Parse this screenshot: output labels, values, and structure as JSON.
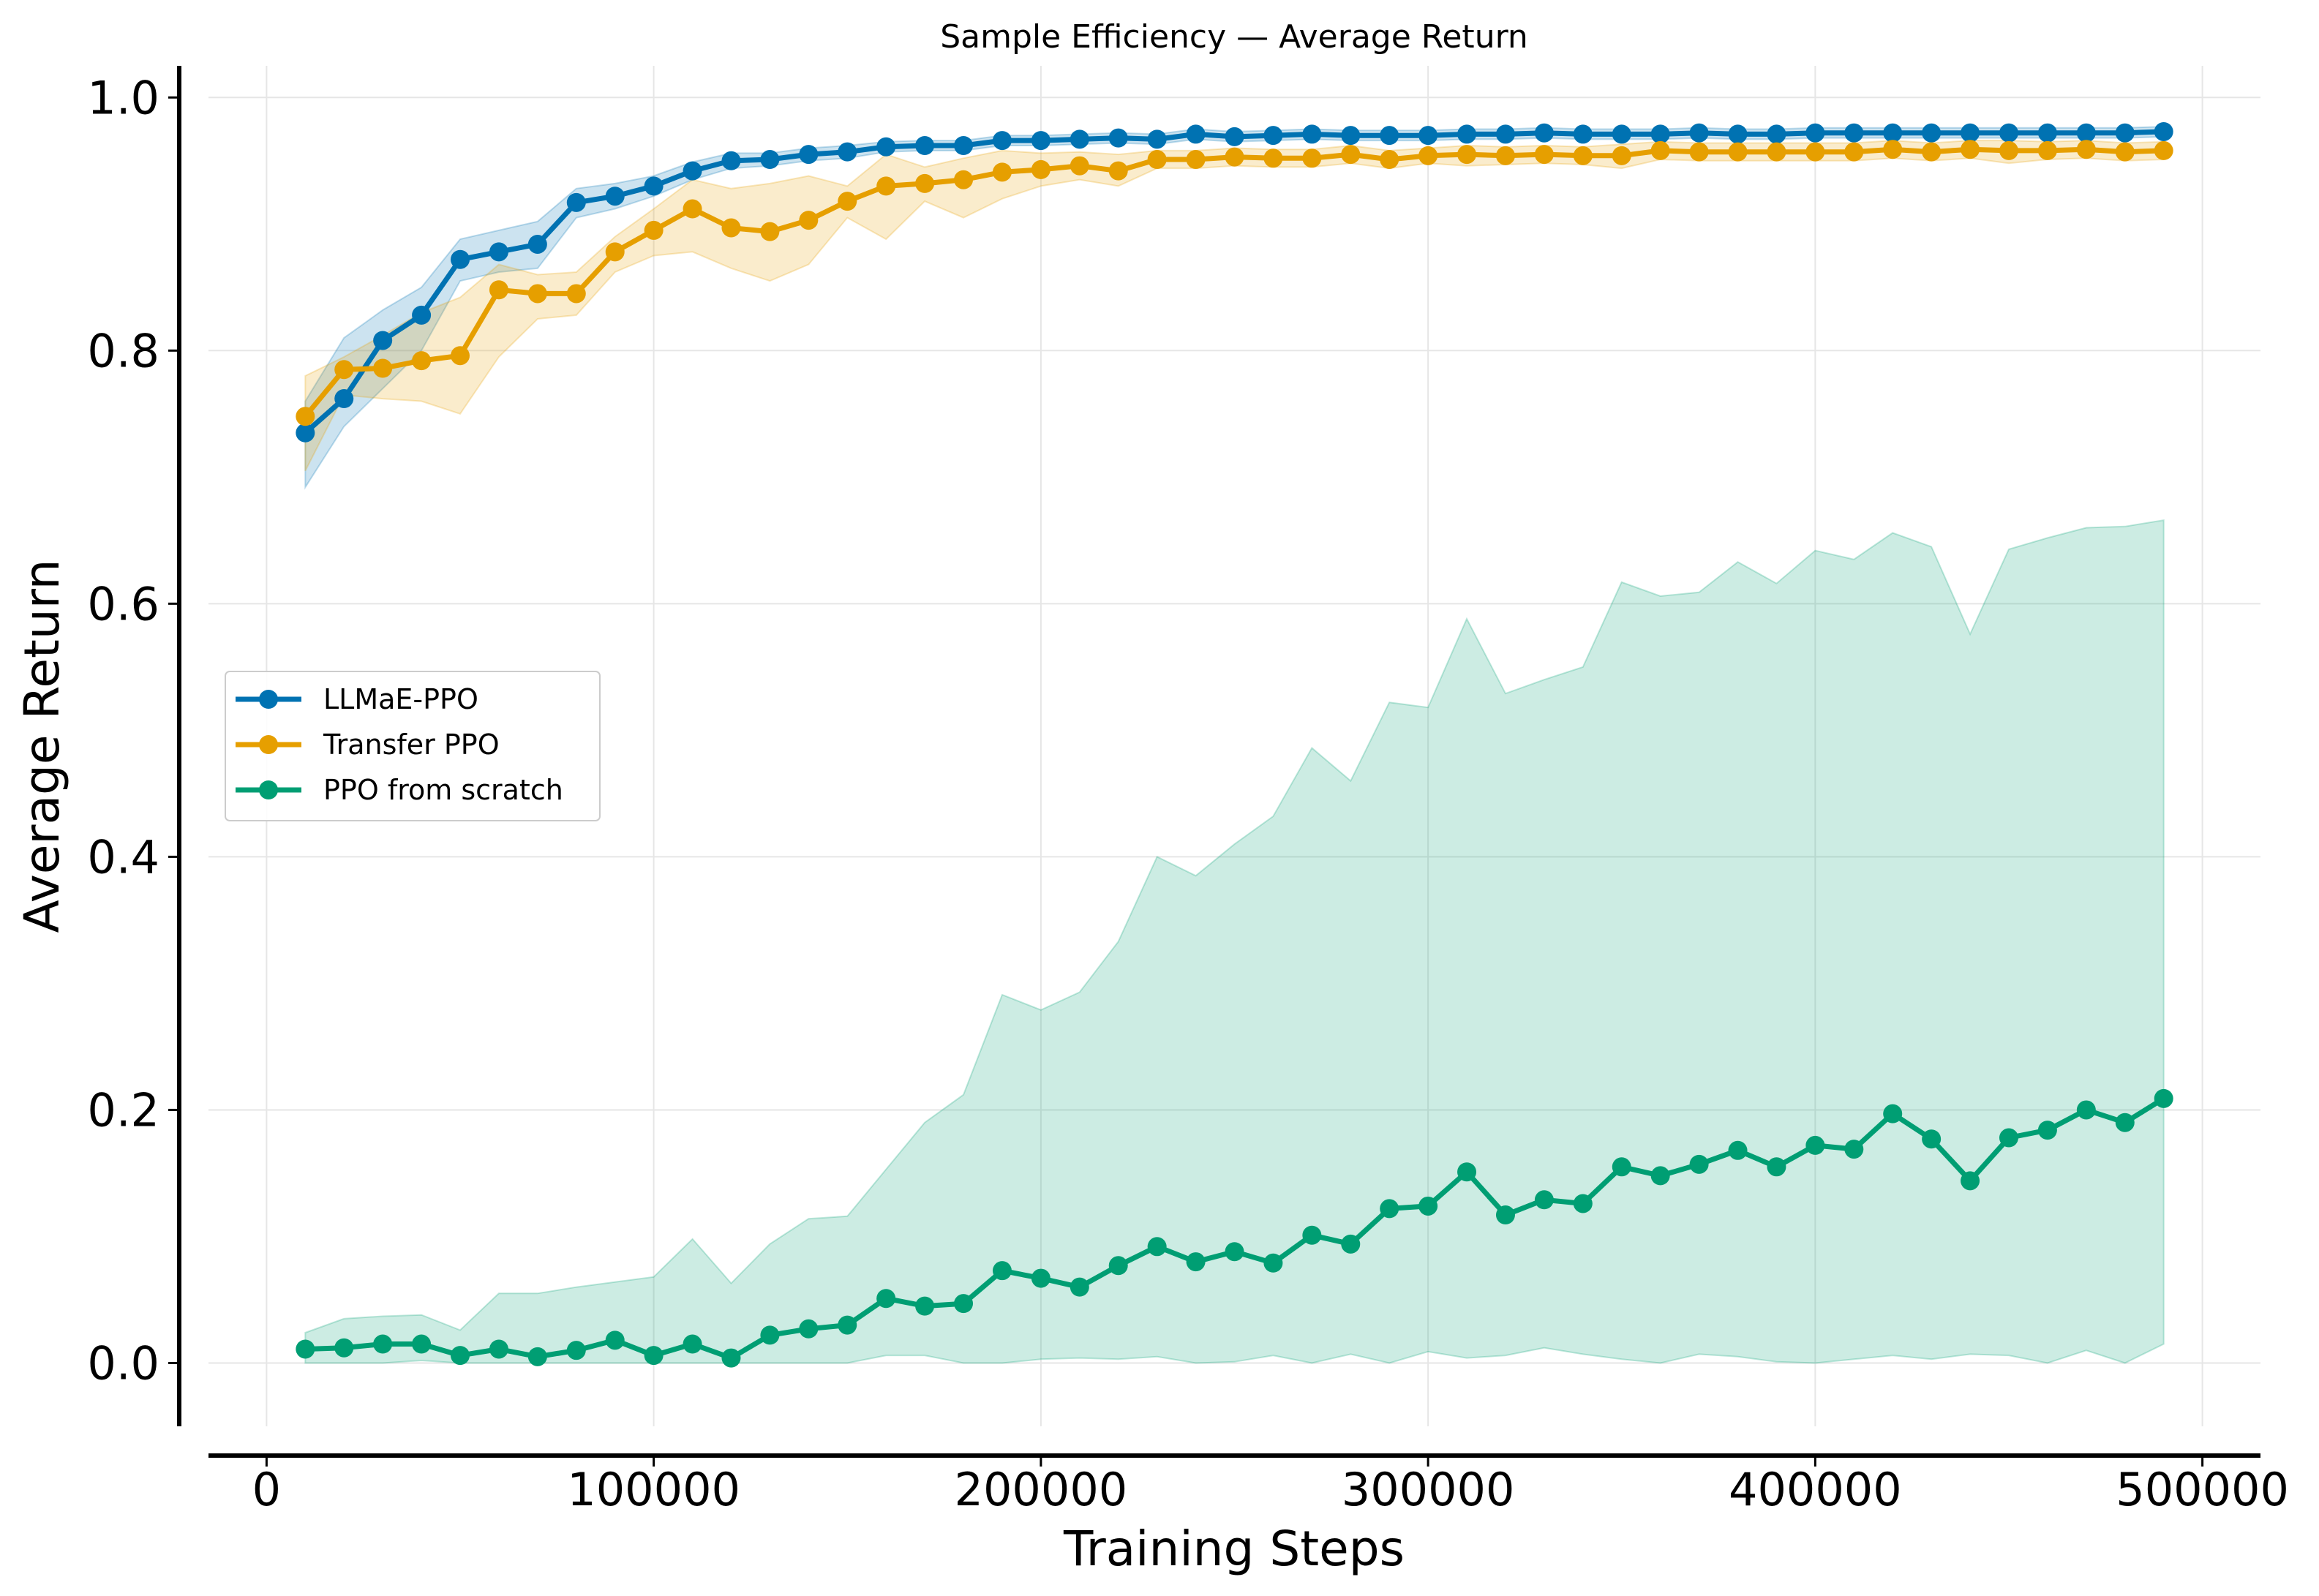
{
  "chart_data": {
    "type": "line",
    "title": "Sample Efficiency — Average Return",
    "xlabel": "Training Steps",
    "ylabel": "Average Return",
    "xlim": [
      -15000,
      515000
    ],
    "ylim": [
      -0.05,
      1.025
    ],
    "xticks": [
      0,
      100000,
      200000,
      300000,
      400000,
      500000
    ],
    "yticks": [
      0.0,
      0.2,
      0.4,
      0.6,
      0.8,
      1.0
    ],
    "ytick_labels": [
      "0.0",
      "0.2",
      "0.4",
      "0.6",
      "0.8",
      "1.0"
    ],
    "grid": true,
    "legend_position": "center-left",
    "x": [
      10000,
      20000,
      30000,
      40000,
      50000,
      60000,
      70000,
      80000,
      90000,
      100000,
      110000,
      120000,
      130000,
      140000,
      150000,
      160000,
      170000,
      180000,
      190000,
      200000,
      210000,
      220000,
      230000,
      240000,
      250000,
      260000,
      270000,
      280000,
      290000,
      300000,
      310000,
      320000,
      330000,
      340000,
      350000,
      360000,
      370000,
      380000,
      390000,
      400000,
      410000,
      420000,
      430000,
      440000,
      450000,
      460000,
      470000,
      480000,
      490000
    ],
    "series": [
      {
        "name": "LLMaE-PPO",
        "color": "#0072b2",
        "values": [
          0.735,
          0.762,
          0.808,
          0.828,
          0.872,
          0.878,
          0.884,
          0.917,
          0.922,
          0.93,
          0.942,
          0.95,
          0.951,
          0.955,
          0.957,
          0.961,
          0.962,
          0.962,
          0.966,
          0.966,
          0.967,
          0.968,
          0.967,
          0.971,
          0.969,
          0.97,
          0.971,
          0.97,
          0.97,
          0.97,
          0.971,
          0.971,
          0.972,
          0.971,
          0.971,
          0.971,
          0.972,
          0.971,
          0.971,
          0.972,
          0.972,
          0.972,
          0.972,
          0.972,
          0.972,
          0.972,
          0.972,
          0.972,
          0.973
        ],
        "lower": [
          0.692,
          0.74,
          0.77,
          0.8,
          0.855,
          0.862,
          0.865,
          0.905,
          0.912,
          0.922,
          0.935,
          0.944,
          0.946,
          0.95,
          0.952,
          0.957,
          0.958,
          0.958,
          0.962,
          0.962,
          0.963,
          0.964,
          0.963,
          0.967,
          0.965,
          0.966,
          0.967,
          0.966,
          0.966,
          0.966,
          0.967,
          0.967,
          0.968,
          0.967,
          0.967,
          0.967,
          0.968,
          0.967,
          0.967,
          0.968,
          0.968,
          0.968,
          0.968,
          0.968,
          0.968,
          0.968,
          0.968,
          0.968,
          0.969
        ],
        "upper": [
          0.76,
          0.81,
          0.832,
          0.85,
          0.888,
          0.895,
          0.902,
          0.928,
          0.932,
          0.938,
          0.949,
          0.956,
          0.956,
          0.96,
          0.962,
          0.965,
          0.966,
          0.966,
          0.97,
          0.97,
          0.971,
          0.972,
          0.971,
          0.975,
          0.973,
          0.974,
          0.975,
          0.974,
          0.974,
          0.974,
          0.975,
          0.975,
          0.976,
          0.975,
          0.975,
          0.975,
          0.976,
          0.975,
          0.975,
          0.976,
          0.976,
          0.976,
          0.976,
          0.976,
          0.976,
          0.976,
          0.976,
          0.976,
          0.977
        ]
      },
      {
        "name": "Transfer PPO",
        "color": "#e69f00",
        "values": [
          0.748,
          0.785,
          0.786,
          0.792,
          0.796,
          0.848,
          0.845,
          0.845,
          0.878,
          0.895,
          0.912,
          0.897,
          0.894,
          0.903,
          0.918,
          0.93,
          0.932,
          0.935,
          0.941,
          0.943,
          0.946,
          0.942,
          0.951,
          0.951,
          0.953,
          0.952,
          0.952,
          0.955,
          0.951,
          0.954,
          0.955,
          0.954,
          0.955,
          0.954,
          0.954,
          0.958,
          0.957,
          0.957,
          0.957,
          0.957,
          0.957,
          0.959,
          0.957,
          0.959,
          0.958,
          0.958,
          0.959,
          0.957,
          0.958
        ],
        "lower": [
          0.705,
          0.765,
          0.762,
          0.76,
          0.75,
          0.795,
          0.825,
          0.828,
          0.862,
          0.875,
          0.878,
          0.865,
          0.855,
          0.868,
          0.905,
          0.888,
          0.918,
          0.905,
          0.92,
          0.93,
          0.935,
          0.93,
          0.944,
          0.944,
          0.946,
          0.945,
          0.945,
          0.948,
          0.944,
          0.948,
          0.946,
          0.947,
          0.948,
          0.947,
          0.944,
          0.951,
          0.95,
          0.95,
          0.95,
          0.95,
          0.95,
          0.952,
          0.95,
          0.952,
          0.948,
          0.951,
          0.952,
          0.95,
          0.951
        ],
        "upper": [
          0.78,
          0.795,
          0.812,
          0.83,
          0.842,
          0.868,
          0.86,
          0.862,
          0.89,
          0.912,
          0.935,
          0.928,
          0.932,
          0.938,
          0.93,
          0.955,
          0.945,
          0.952,
          0.958,
          0.956,
          0.957,
          0.955,
          0.958,
          0.958,
          0.96,
          0.959,
          0.959,
          0.962,
          0.958,
          0.96,
          0.962,
          0.961,
          0.962,
          0.961,
          0.963,
          0.965,
          0.964,
          0.964,
          0.964,
          0.964,
          0.964,
          0.966,
          0.964,
          0.966,
          0.966,
          0.965,
          0.966,
          0.964,
          0.965
        ]
      },
      {
        "name": "PPO from scratch",
        "color": "#009e73",
        "values": [
          0.011,
          0.012,
          0.015,
          0.015,
          0.006,
          0.011,
          0.005,
          0.01,
          0.018,
          0.006,
          0.015,
          0.004,
          0.022,
          0.027,
          0.03,
          0.051,
          0.045,
          0.047,
          0.073,
          0.067,
          0.06,
          0.077,
          0.092,
          0.08,
          0.088,
          0.079,
          0.101,
          0.094,
          0.122,
          0.124,
          0.151,
          0.117,
          0.129,
          0.126,
          0.155,
          0.148,
          0.157,
          0.168,
          0.155,
          0.172,
          0.169,
          0.197,
          0.177,
          0.144,
          0.178,
          0.184,
          0.2,
          0.19,
          0.209
        ],
        "lower": [
          0.0,
          0.0,
          0.0,
          0.002,
          0.0,
          0.0,
          0.0,
          0.0,
          0.0,
          0.0,
          0.0,
          0.0,
          0.0,
          0.0,
          0.0,
          0.006,
          0.006,
          0.0,
          0.0,
          0.003,
          0.004,
          0.003,
          0.005,
          0.0,
          0.001,
          0.006,
          0.0,
          0.007,
          0.0,
          0.009,
          0.004,
          0.006,
          0.012,
          0.007,
          0.003,
          0.0,
          0.007,
          0.005,
          0.001,
          0.0,
          0.003,
          0.006,
          0.003,
          0.007,
          0.006,
          0.0,
          0.01,
          0.0,
          0.015
        ],
        "upper": [
          0.024,
          0.035,
          0.037,
          0.038,
          0.026,
          0.055,
          0.055,
          0.06,
          0.064,
          0.068,
          0.098,
          0.063,
          0.094,
          0.114,
          0.116,
          0.153,
          0.19,
          0.212,
          0.291,
          0.279,
          0.293,
          0.333,
          0.4,
          0.385,
          0.41,
          0.432,
          0.486,
          0.46,
          0.522,
          0.518,
          0.588,
          0.529,
          0.54,
          0.55,
          0.617,
          0.606,
          0.609,
          0.633,
          0.616,
          0.642,
          0.635,
          0.656,
          0.645,
          0.576,
          0.643,
          0.652,
          0.66,
          0.661,
          0.666
        ]
      }
    ]
  }
}
